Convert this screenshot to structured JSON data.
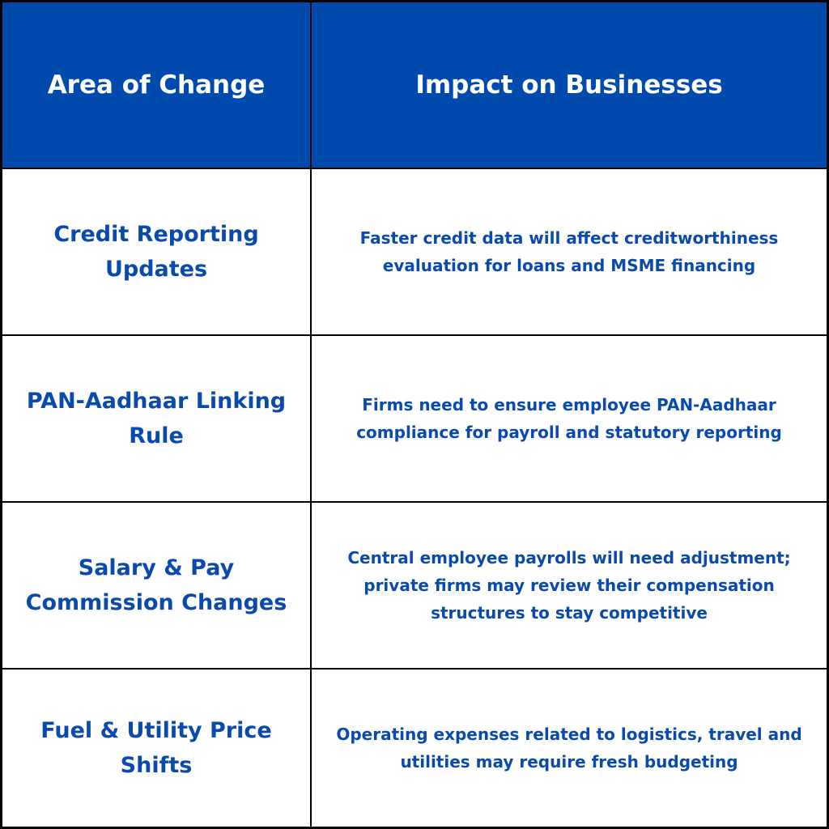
{
  "colors": {
    "header_bg": "#004AAD",
    "header_text": "#FFFFFF",
    "body_text": "#0A4AAD",
    "border": "#000000"
  },
  "table": {
    "headers": [
      "Area of Change",
      "Impact on Businesses"
    ],
    "rows": [
      {
        "area": "Credit Reporting Updates",
        "impact": "Faster credit data will affect creditworthiness evaluation for loans and MSME financing"
      },
      {
        "area": "PAN-Aadhaar Linking Rule",
        "impact": "Firms need to ensure employee PAN-Aadhaar compliance for payroll and statutory reporting"
      },
      {
        "area": "Salary & Pay Commission Changes",
        "impact": "Central employee payrolls will need adjustment; private firms may review their compensation structures to stay competitive"
      },
      {
        "area": "Fuel & Utility Price Shifts",
        "impact": "Operating expenses related to logistics, travel and utilities may require fresh budgeting"
      }
    ]
  }
}
